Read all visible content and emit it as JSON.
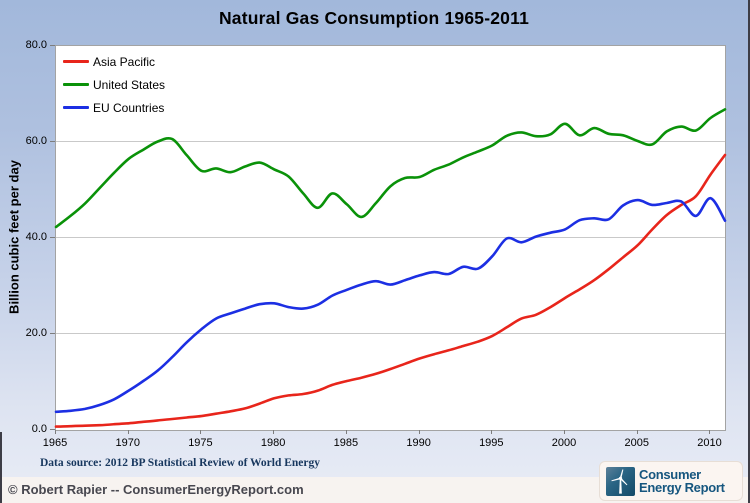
{
  "title": "Natural Gas Consumption 1965-2011",
  "footer": {
    "data_source": "Data source: 2012 BP Statistical Review of World Energy",
    "copyright": "© Robert Rapier -- ConsumerEnergyReport.com"
  },
  "logo": {
    "line1": "Consumer",
    "line2": "Energy Report",
    "icon": "wind-turbine-icon",
    "text_color": "#16567f"
  },
  "chart_data": {
    "type": "line",
    "title": "Natural Gas Consumption 1965-2011",
    "xlabel": "",
    "ylabel": "Billion cubic feet per day",
    "ylim": [
      0,
      80
    ],
    "x_range": [
      1965,
      2011
    ],
    "x_step": 1,
    "grid": true,
    "legend_position": "top-left-inside",
    "y_tick_labels": [
      "80.0",
      "60.0",
      "40.0",
      "20.0",
      "0.0"
    ],
    "x_tick_labels": [
      "1965",
      "1970",
      "1975",
      "1980",
      "1985",
      "1990",
      "1995",
      "2000",
      "2005",
      "2010"
    ],
    "series": [
      {
        "name": "Asia Pacific",
        "color": "#e8251b",
        "values": [
          0.7,
          0.8,
          0.9,
          1.0,
          1.2,
          1.4,
          1.7,
          2.0,
          2.3,
          2.6,
          2.9,
          3.4,
          3.9,
          4.5,
          5.5,
          6.6,
          7.2,
          7.5,
          8.2,
          9.4,
          10.2,
          10.9,
          11.7,
          12.7,
          13.8,
          14.9,
          15.8,
          16.6,
          17.5,
          18.4,
          19.6,
          21.4,
          23.2,
          24.0,
          25.6,
          27.5,
          29.3,
          31.2,
          33.5,
          36.0,
          38.5,
          41.8,
          44.8,
          46.9,
          48.7,
          53.2,
          57.3
        ]
      },
      {
        "name": "United States",
        "color": "#0a9209",
        "values": [
          42.3,
          44.6,
          47.2,
          50.4,
          53.6,
          56.5,
          58.4,
          60.1,
          60.6,
          57.2,
          54.0,
          54.5,
          53.7,
          54.9,
          55.7,
          54.3,
          52.8,
          49.3,
          46.3,
          49.3,
          47.0,
          44.4,
          47.3,
          50.8,
          52.5,
          52.7,
          54.2,
          55.3,
          56.8,
          58.0,
          59.3,
          61.3,
          62.0,
          61.2,
          61.6,
          63.8,
          61.4,
          62.9,
          61.7,
          61.4,
          60.2,
          59.5,
          62.2,
          63.2,
          62.4,
          65.0,
          66.8
        ]
      },
      {
        "name": "EU Countries",
        "color": "#1c2fe3",
        "values": [
          3.8,
          4.0,
          4.4,
          5.2,
          6.4,
          8.2,
          10.2,
          12.4,
          15.2,
          18.3,
          21.0,
          23.2,
          24.3,
          25.3,
          26.2,
          26.4,
          25.6,
          25.3,
          26.1,
          28.0,
          29.2,
          30.3,
          31.0,
          30.3,
          31.2,
          32.2,
          32.9,
          32.5,
          34.0,
          33.6,
          36.2,
          39.9,
          39.1,
          40.3,
          41.1,
          41.8,
          43.7,
          44.1,
          43.9,
          46.8,
          47.9,
          46.9,
          47.3,
          47.6,
          44.6,
          48.3,
          43.6
        ]
      }
    ],
    "legend_order": [
      0,
      1,
      2
    ]
  }
}
